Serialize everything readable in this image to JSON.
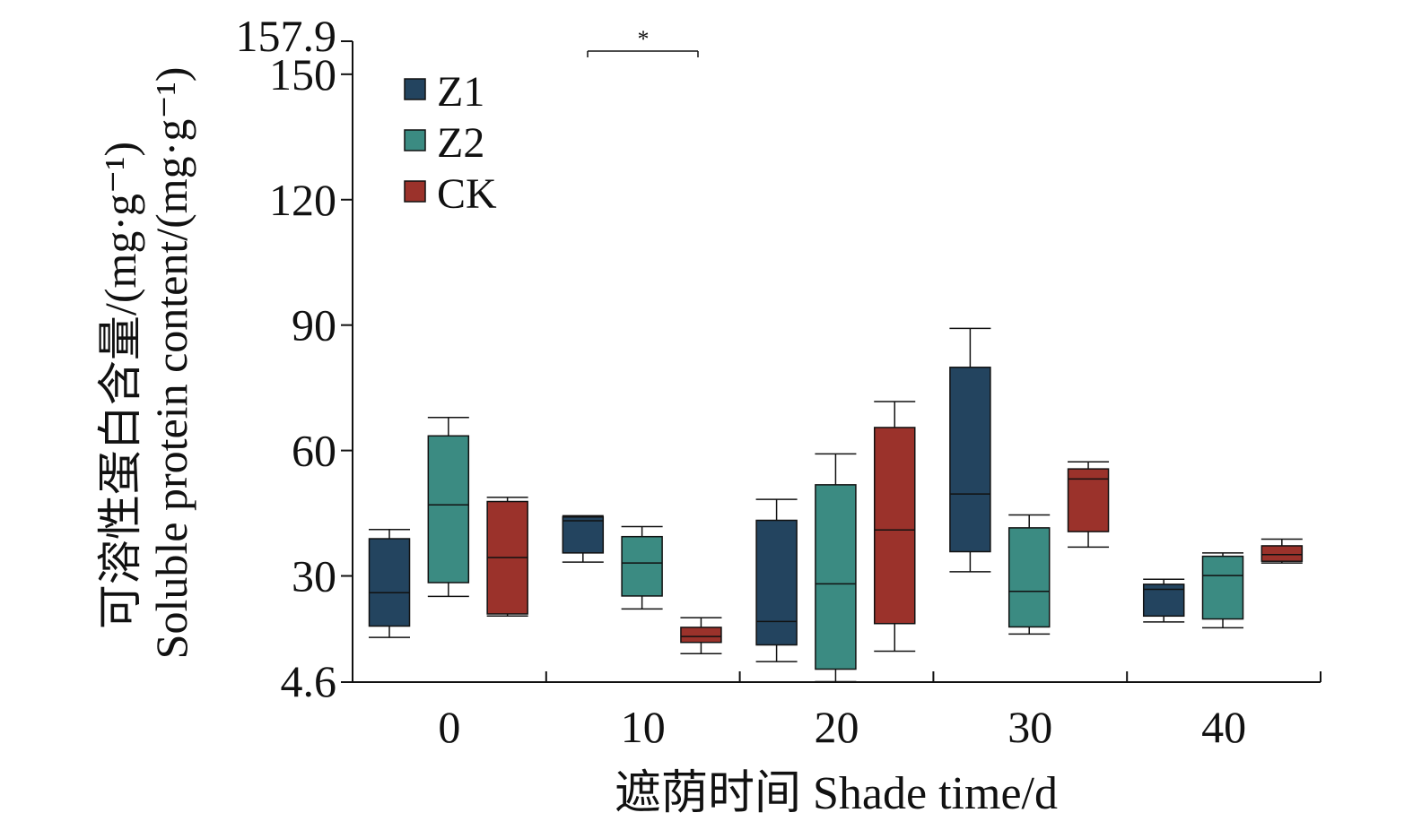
{
  "chart_data": {
    "type": "box",
    "xlabel": "遮荫时间 Shade time/d",
    "ylabel_cn": "可溶性蛋白含量/(mg·g⁻¹)",
    "ylabel_en": "Soluble protein content/(mg·g⁻¹)",
    "y_axis_min_label": "4.6",
    "y_axis_max_label": "157.9",
    "ylim": [
      4.6,
      157.9
    ],
    "y_ticks": [
      "30",
      "60",
      "90",
      "120",
      "150"
    ],
    "categories": [
      "0",
      "10",
      "20",
      "30",
      "40"
    ],
    "legend_position": "top-left",
    "significance": {
      "label": "*",
      "from_category": "10"
    },
    "series": [
      {
        "name": "Z1",
        "color": "#23445f",
        "boxes": [
          {
            "min": 15.3,
            "q1": 18.0,
            "median": 26.0,
            "q3": 38.9,
            "max": 41.1
          },
          {
            "min": 33.3,
            "q1": 35.5,
            "median": 43.2,
            "q3": 44.1,
            "max": 44.4
          },
          {
            "min": 9.5,
            "q1": 13.5,
            "median": 19.1,
            "q3": 43.3,
            "max": 48.3
          },
          {
            "min": 31.0,
            "q1": 35.8,
            "median": 49.6,
            "q3": 79.9,
            "max": 89.2
          },
          {
            "min": 19.0,
            "q1": 20.4,
            "median": 26.8,
            "q3": 28.0,
            "max": 29.2
          }
        ]
      },
      {
        "name": "Z2",
        "color": "#3b8b82",
        "boxes": [
          {
            "min": 25.1,
            "q1": 28.4,
            "median": 47.0,
            "q3": 63.5,
            "max": 67.9
          },
          {
            "min": 22.1,
            "q1": 25.2,
            "median": 33.1,
            "q3": 39.4,
            "max": 41.8
          },
          {
            "min": 4.7,
            "q1": 7.7,
            "median": 28.1,
            "q3": 51.8,
            "max": 59.2
          },
          {
            "min": 16.1,
            "q1": 17.8,
            "median": 26.3,
            "q3": 41.5,
            "max": 44.6
          },
          {
            "min": 17.6,
            "q1": 19.7,
            "median": 30.1,
            "q3": 34.7,
            "max": 35.5
          }
        ]
      },
      {
        "name": "CK",
        "color": "#9b322b",
        "boxes": [
          {
            "min": 20.4,
            "q1": 20.9,
            "median": 34.4,
            "q3": 47.8,
            "max": 48.8
          },
          {
            "min": 11.4,
            "q1": 14.1,
            "median": 15.5,
            "q3": 17.7,
            "max": 20.0
          },
          {
            "min": 12.0,
            "q1": 18.6,
            "median": 41.0,
            "q3": 65.5,
            "max": 71.7
          },
          {
            "min": 36.9,
            "q1": 40.6,
            "median": 53.2,
            "q3": 55.6,
            "max": 57.3
          },
          {
            "min": 33.1,
            "q1": 33.5,
            "median": 35.1,
            "q3": 37.2,
            "max": 38.8
          }
        ]
      }
    ]
  }
}
